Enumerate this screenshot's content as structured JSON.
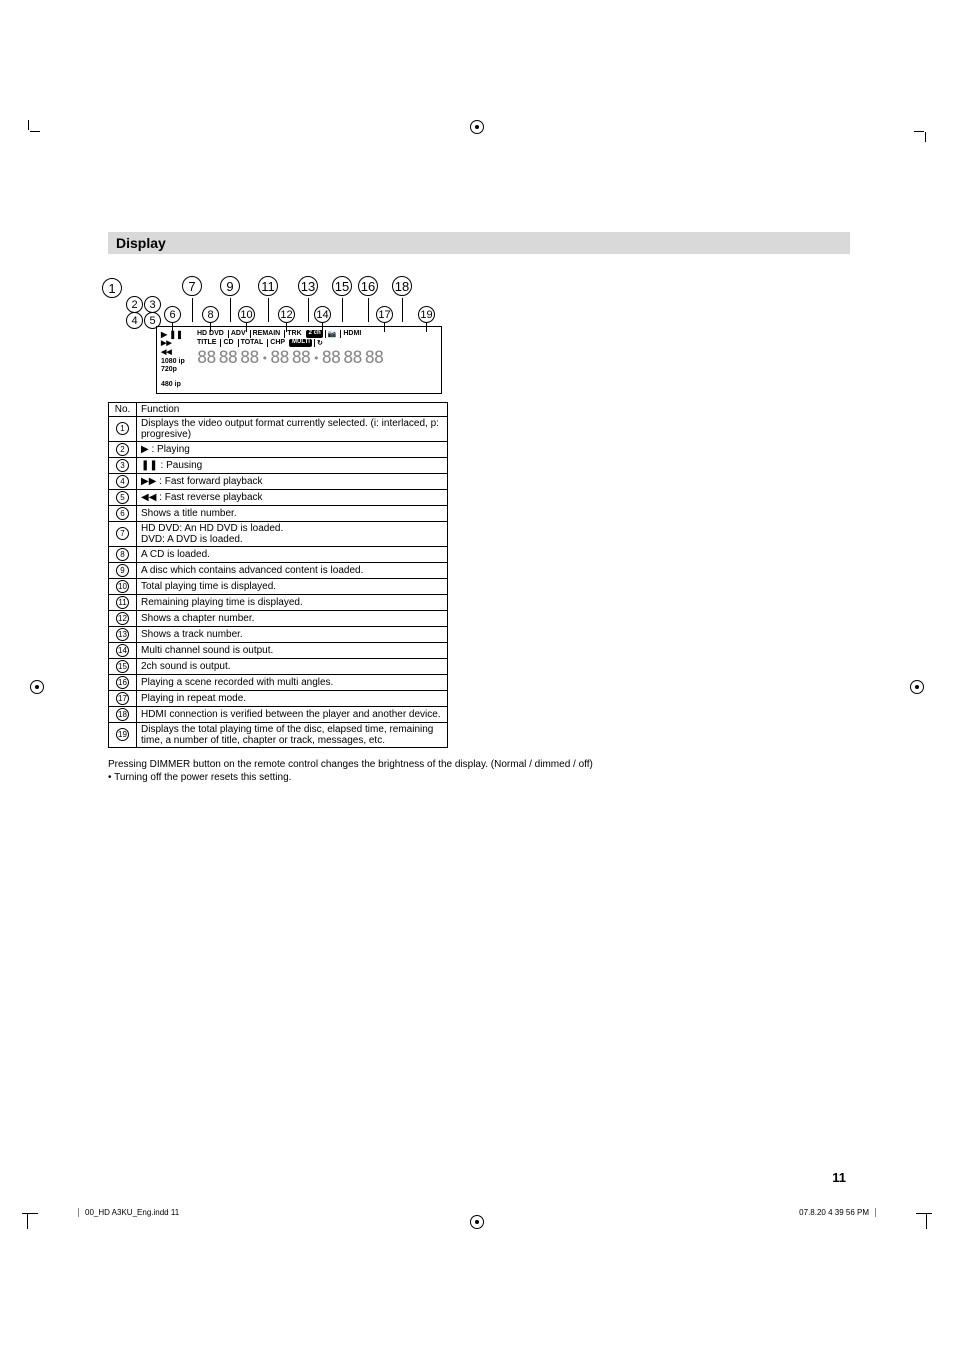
{
  "section_title": "Display",
  "callouts_top": [
    "1",
    "7",
    "9",
    "11",
    "13",
    "15",
    "16",
    "18"
  ],
  "callouts_mid1": [
    "2",
    "3",
    "6",
    "8",
    "10",
    "12",
    "14",
    "17",
    "19"
  ],
  "callouts_mid2": [
    "4",
    "5"
  ],
  "vcd_left": {
    "row1": "▶ ❚❚",
    "row2": "▶▶",
    "row3": "◀◀",
    "res_a": "1080 ip",
    "res_b": "720p",
    "res_c": "480 ip"
  },
  "vcd_labels": [
    "HD DVD",
    "ADV",
    "REMAIN",
    "TRK"
  ],
  "vcd_labels_b": [
    "TITLE",
    "CD",
    "TOTAL",
    "CHP"
  ],
  "vcd_badges": [
    "2 ch",
    "MULTI"
  ],
  "vcd_right_labels": [
    "HDMI"
  ],
  "vcd_right_icons": [
    "📷",
    "↻"
  ],
  "digit_sample": "88",
  "table_header": {
    "no": "No.",
    "fn": "Function"
  },
  "rows": [
    {
      "n": "1",
      "t": "Displays the video output format currently selected. (i: interlaced, p: progresive)"
    },
    {
      "n": "2",
      "t": "▶ : Playing"
    },
    {
      "n": "3",
      "t": "❚❚ : Pausing"
    },
    {
      "n": "4",
      "t": "▶▶ : Fast forward playback"
    },
    {
      "n": "5",
      "t": "◀◀ : Fast reverse playback"
    },
    {
      "n": "6",
      "t": "Shows a title number."
    },
    {
      "n": "7",
      "t": "HD DVD: An HD DVD is loaded.\nDVD: A DVD is loaded."
    },
    {
      "n": "8",
      "t": "A CD is loaded."
    },
    {
      "n": "9",
      "t": "A disc which contains advanced content is loaded."
    },
    {
      "n": "10",
      "t": "Total playing time is displayed."
    },
    {
      "n": "11",
      "t": "Remaining playing time is displayed."
    },
    {
      "n": "12",
      "t": "Shows a chapter number."
    },
    {
      "n": "13",
      "t": "Shows a track number."
    },
    {
      "n": "14",
      "t": "Multi channel sound is output."
    },
    {
      "n": "15",
      "t": "2ch sound is output."
    },
    {
      "n": "16",
      "t": "Playing a scene recorded with multi angles."
    },
    {
      "n": "17",
      "t": "Playing in repeat mode."
    },
    {
      "n": "18",
      "t": "HDMI connection is verified between the player and another device."
    },
    {
      "n": "19",
      "t": "Displays the total playing time of the disc, elapsed time, remaining time, a number of title, chapter or track, messages, etc."
    }
  ],
  "note_line1": "Pressing DIMMER button on the remote control changes the brightness of the display. (Normal / dimmed / off)",
  "note_line2": "•  Turning off the power resets this setting.",
  "page_number": "11",
  "footer_left": "00_HD A3KU_Eng.indd   11",
  "footer_right": "07.8.20   4 39 56 PM"
}
